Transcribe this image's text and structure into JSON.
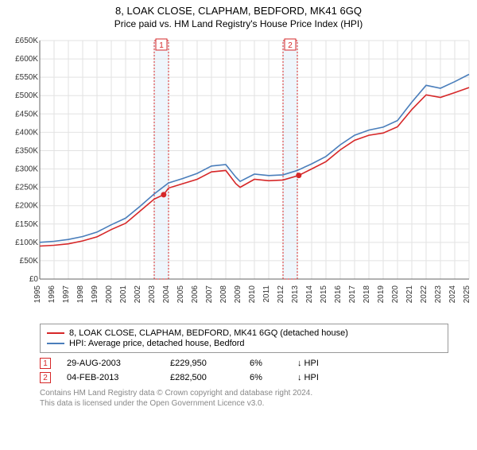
{
  "title": "8, LOAK CLOSE, CLAPHAM, BEDFORD, MK41 6GQ",
  "subtitle": "Price paid vs. HM Land Registry's House Price Index (HPI)",
  "chart": {
    "type": "line",
    "background_color": "#ffffff",
    "grid_color": "#e2e2e2",
    "axis_color": "#666666",
    "band_color": "#e2eef9",
    "marker_line_color": "#d62728",
    "xlim": [
      1995,
      2025
    ],
    "ylim": [
      0,
      650000
    ],
    "ytick_step": 50000,
    "yticks": [
      "£0",
      "£50K",
      "£100K",
      "£150K",
      "£200K",
      "£250K",
      "£300K",
      "£350K",
      "£400K",
      "£450K",
      "£500K",
      "£550K",
      "£600K",
      "£650K"
    ],
    "xticks": [
      1995,
      1996,
      1997,
      1998,
      1999,
      2000,
      2001,
      2002,
      2003,
      2004,
      2005,
      2006,
      2007,
      2008,
      2009,
      2010,
      2011,
      2012,
      2013,
      2014,
      2015,
      2016,
      2017,
      2018,
      2019,
      2020,
      2021,
      2022,
      2023,
      2024,
      2025
    ],
    "tick_fontsize": 10,
    "title_fontsize": 13,
    "line_width": 1.6,
    "band_years": [
      [
        2003,
        2004
      ],
      [
        2012,
        2013
      ]
    ],
    "redband_years": [
      [
        2003,
        2004
      ],
      [
        2012,
        2013
      ]
    ],
    "badge_labels": [
      "1",
      "2"
    ],
    "markers": [
      {
        "year": 2003.66,
        "value": 229950
      },
      {
        "year": 2013.1,
        "value": 282500
      }
    ],
    "series": [
      {
        "name": "price_paid",
        "color": "#d62728",
        "points": [
          [
            1995,
            90000
          ],
          [
            1996,
            92000
          ],
          [
            1997,
            96000
          ],
          [
            1998,
            104000
          ],
          [
            1999,
            115000
          ],
          [
            2000,
            135000
          ],
          [
            2001,
            152000
          ],
          [
            2002,
            185000
          ],
          [
            2003,
            218000
          ],
          [
            2003.66,
            229950
          ],
          [
            2004,
            248000
          ],
          [
            2005,
            260000
          ],
          [
            2006,
            272000
          ],
          [
            2007,
            292000
          ],
          [
            2008,
            296000
          ],
          [
            2008.7,
            260000
          ],
          [
            2009,
            250000
          ],
          [
            2010,
            272000
          ],
          [
            2011,
            268000
          ],
          [
            2012,
            270000
          ],
          [
            2013.1,
            282500
          ],
          [
            2014,
            300000
          ],
          [
            2015,
            320000
          ],
          [
            2016,
            352000
          ],
          [
            2017,
            378000
          ],
          [
            2018,
            392000
          ],
          [
            2019,
            398000
          ],
          [
            2020,
            415000
          ],
          [
            2021,
            462000
          ],
          [
            2022,
            502000
          ],
          [
            2023,
            495000
          ],
          [
            2024,
            508000
          ],
          [
            2025,
            522000
          ]
        ]
      },
      {
        "name": "hpi",
        "color": "#4a7ebb",
        "points": [
          [
            1995,
            100000
          ],
          [
            1996,
            103000
          ],
          [
            1997,
            108000
          ],
          [
            1998,
            116000
          ],
          [
            1999,
            128000
          ],
          [
            2000,
            148000
          ],
          [
            2001,
            166000
          ],
          [
            2002,
            198000
          ],
          [
            2003,
            232000
          ],
          [
            2004,
            262000
          ],
          [
            2005,
            274000
          ],
          [
            2006,
            288000
          ],
          [
            2007,
            308000
          ],
          [
            2008,
            312000
          ],
          [
            2008.7,
            278000
          ],
          [
            2009,
            266000
          ],
          [
            2010,
            286000
          ],
          [
            2011,
            282000
          ],
          [
            2012,
            284000
          ],
          [
            2013,
            296000
          ],
          [
            2014,
            314000
          ],
          [
            2015,
            334000
          ],
          [
            2016,
            366000
          ],
          [
            2017,
            392000
          ],
          [
            2018,
            406000
          ],
          [
            2019,
            414000
          ],
          [
            2020,
            432000
          ],
          [
            2021,
            482000
          ],
          [
            2022,
            528000
          ],
          [
            2023,
            520000
          ],
          [
            2024,
            538000
          ],
          [
            2025,
            558000
          ]
        ]
      }
    ]
  },
  "legend": {
    "items": [
      {
        "color": "#d62728",
        "label": "8, LOAK CLOSE, CLAPHAM, BEDFORD, MK41 6GQ (detached house)"
      },
      {
        "color": "#4a7ebb",
        "label": "HPI: Average price, detached house, Bedford"
      }
    ]
  },
  "transactions": [
    {
      "badge": "1",
      "date": "29-AUG-2003",
      "price": "£229,950",
      "delta": "6%",
      "direction": "↓ HPI"
    },
    {
      "badge": "2",
      "date": "04-FEB-2013",
      "price": "£282,500",
      "delta": "6%",
      "direction": "↓ HPI"
    }
  ],
  "footnote_line1": "Contains HM Land Registry data © Crown copyright and database right 2024.",
  "footnote_line2": "This data is licensed under the Open Government Licence v3.0."
}
